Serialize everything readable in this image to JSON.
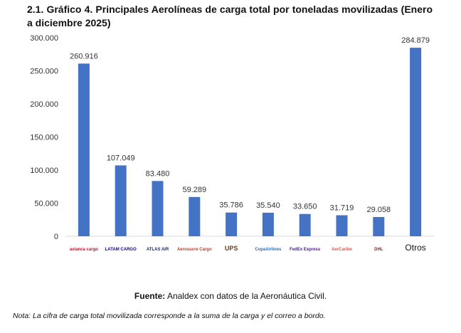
{
  "title": "2.1. Gráfico 4.  Principales Aerolíneas de carga total por toneladas movilizadas (Enero a diciembre 2025)",
  "chart_data": {
    "type": "bar",
    "title": "Principales Aerolíneas de carga total por toneladas movilizadas (Enero a diciembre 2025)",
    "categories": [
      "avianca cargo",
      "LATAM CARGO",
      "ATLAS AIR",
      "Aerosucre Cargo",
      "UPS",
      "CopaAirlines",
      "FedEx Express",
      "AerCaribe",
      "DHL",
      "Otros"
    ],
    "values": [
      260916,
      107049,
      83480,
      59289,
      35786,
      35540,
      33650,
      31719,
      29058,
      284879
    ],
    "value_labels": [
      "260.916",
      "107.049",
      "83.480",
      "59.289",
      "35.786",
      "35.540",
      "33.650",
      "31.719",
      "29.058",
      "284.879"
    ],
    "ylim": [
      0,
      300000
    ],
    "yticks": [
      0,
      50000,
      100000,
      150000,
      200000,
      250000,
      300000
    ],
    "ytick_labels": [
      "0",
      "50.000",
      "100.000",
      "150.000",
      "200.000",
      "250.000",
      "300.000"
    ],
    "xlabel": "",
    "ylabel": "",
    "grid": false,
    "bar_color": "#4472c4",
    "category_colors": [
      "#e4002b",
      "#1b0088",
      "#1a2a6c",
      "#c0392b",
      "#6b3e1e",
      "#2a6ebb",
      "#4d148c",
      "#d9534f",
      "#d40511",
      "#111111"
    ]
  },
  "source_label": "Fuente:",
  "source_text": " Analdex con datos de la Aeronáutica Civil.",
  "note": "Nota: La cifra de carga total movilizada corresponde a la suma de la carga y el correo a bordo."
}
